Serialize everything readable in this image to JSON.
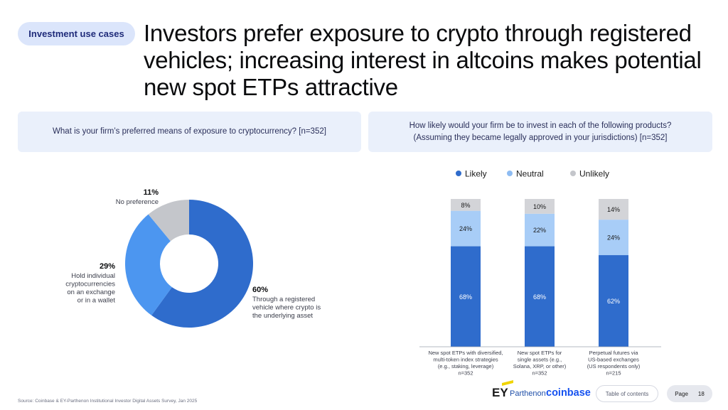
{
  "tag": "Investment use cases",
  "title": "Investors prefer exposure to crypto through registered vehicles; increasing interest in altcoins makes potential new spot ETPs attractive",
  "left_question": "What is your firm’s preferred means of exposure to cryptocurrency? [n=352]",
  "right_question_line1": "How likely would your firm be to invest in each of the following products?",
  "right_question_line2": "(Assuming they became legally approved in your jurisdictions) [n=352]",
  "colors": {
    "dark_blue": "#2f6ccc",
    "mid_blue": "#4c96f0",
    "light_blue": "#a8cdf7",
    "grey": "#c4c6cb",
    "tag_bg": "#dbe5fb"
  },
  "chart_data": [
    {
      "type": "pie",
      "donut": true,
      "slices": [
        {
          "value": 60,
          "pct": "60%",
          "label_lines": [
            "Through a registered",
            "vehicle where crypto is",
            "the underlying asset"
          ],
          "color": "#2f6ccc"
        },
        {
          "value": 29,
          "pct": "29%",
          "label_lines": [
            "Hold individual",
            "cryptocurrencies",
            "on an exchange",
            "or in a wallet"
          ],
          "color": "#4c96f0"
        },
        {
          "value": 11,
          "pct": "11%",
          "label_lines": [
            "No preference"
          ],
          "color": "#c4c6cb"
        }
      ]
    },
    {
      "type": "bar",
      "stacked": true,
      "legend": [
        "Likely",
        "Neutral",
        "Unlikely"
      ],
      "legend_position": "top",
      "series": [
        {
          "name": "Likely",
          "values": [
            68,
            68,
            62
          ],
          "labels": [
            "68%",
            "68%",
            "62%"
          ],
          "color": "#2f6ccc"
        },
        {
          "name": "Neutral",
          "values": [
            24,
            22,
            24
          ],
          "labels": [
            "24%",
            "22%",
            "24%"
          ],
          "color": "#a8cdf7"
        },
        {
          "name": "Unlikely",
          "values": [
            8,
            10,
            14
          ],
          "labels": [
            "8%",
            "10%",
            "14%"
          ],
          "color": "#d3d4d8"
        }
      ],
      "categories": [
        [
          "New spot ETPs with diversified,",
          "multi-token index strategies",
          "(e.g., staking, leverage)",
          "n=352"
        ],
        [
          "New spot ETPs for",
          "single assets (e.g.,",
          "Solana, XRP, or other)",
          "n=352"
        ],
        [
          "Perpetual futures via",
          "US-based exchanges",
          "(US respondents only)",
          "n=215"
        ]
      ]
    }
  ],
  "source": "Source: Coinbase & EY-Parthenon Institutional Investor Digital Assets Survey, Jan 2025",
  "footer": {
    "ey": "EY",
    "parthenon": "Parthenon",
    "coinbase": "coinbase",
    "toc": "Table of contents",
    "page_label": "Page",
    "page_number": "18"
  }
}
